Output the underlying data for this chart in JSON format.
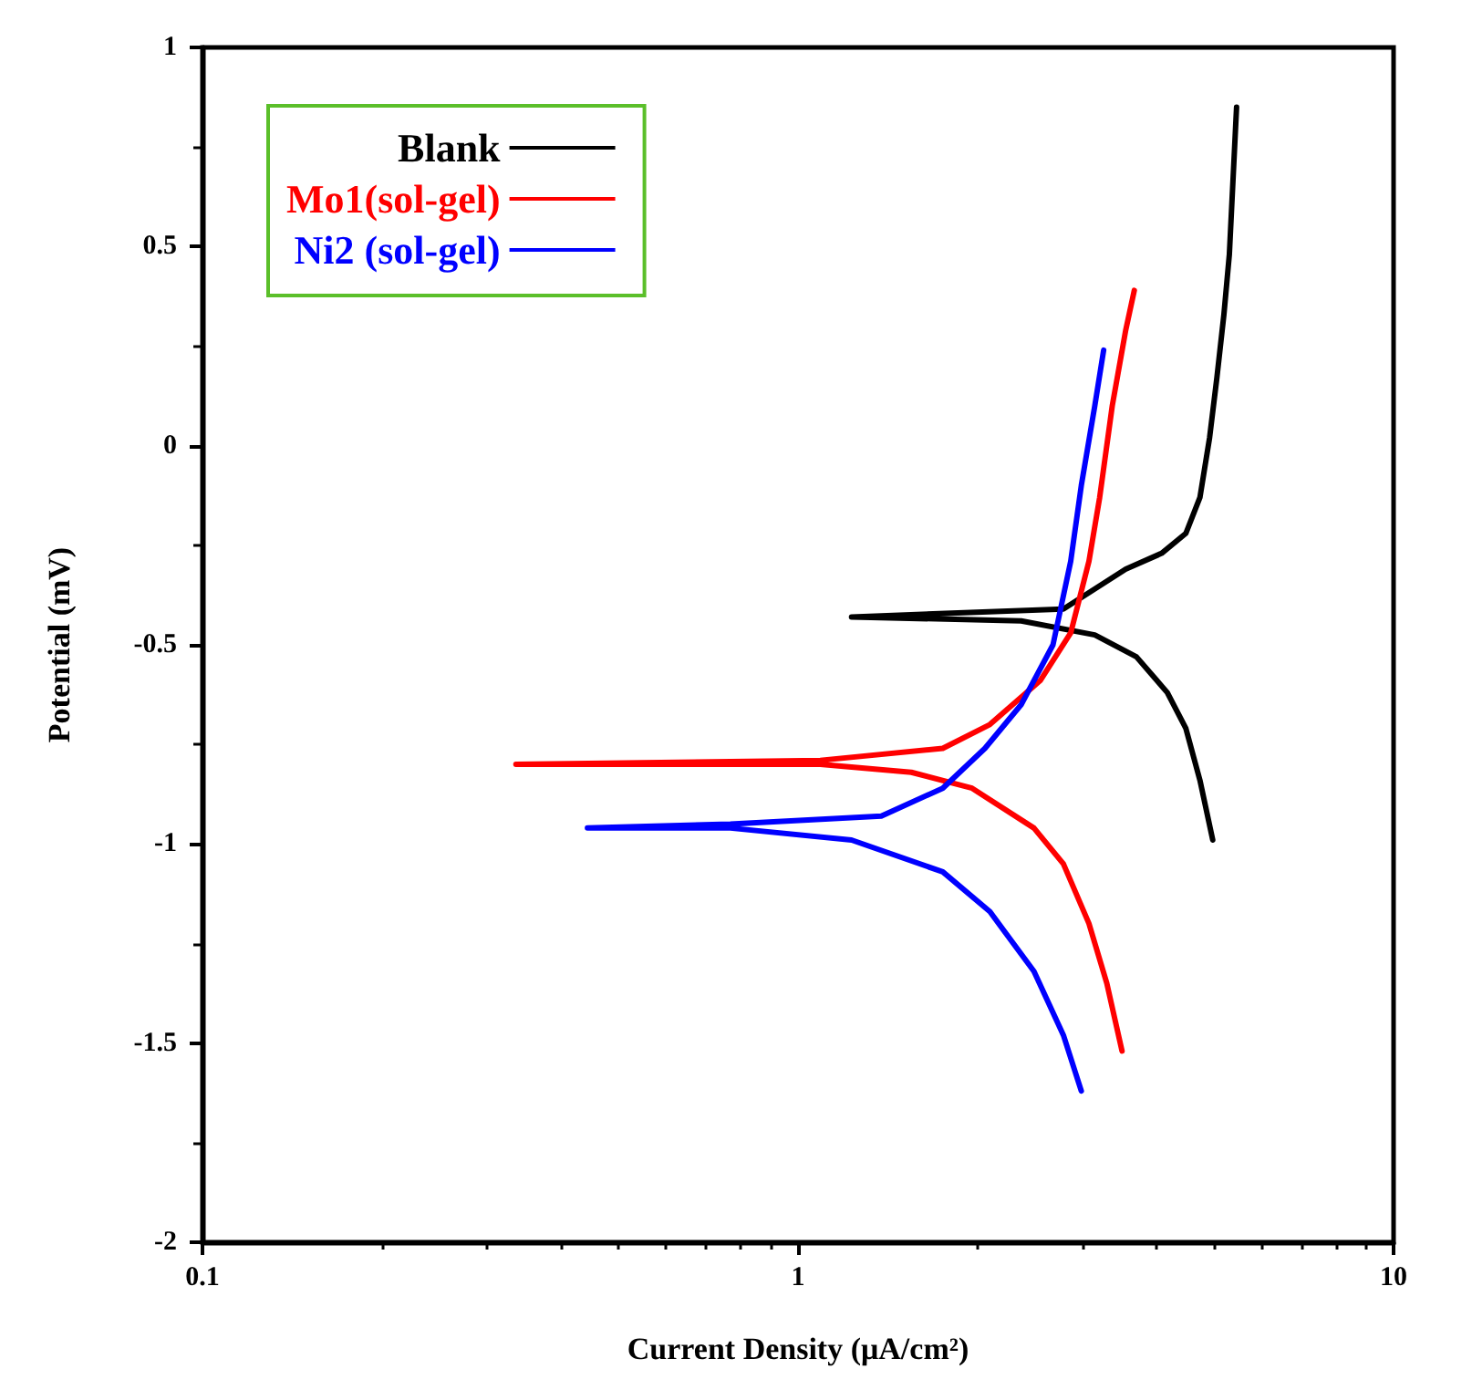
{
  "chart_data": {
    "type": "line",
    "xlabel": "Current Density (μA/cm²)",
    "ylabel": "Potential (mV)",
    "xlim": [
      0.1,
      10
    ],
    "xticks": [
      0.1,
      1,
      10
    ],
    "ylim": [
      -2,
      1
    ],
    "yticks": [
      -2,
      -1.5,
      -1,
      -0.5,
      0,
      0.5,
      1
    ],
    "log": "x",
    "grid": false,
    "legend": "top left",
    "marker": "none",
    "line_style": "solid",
    "series": [
      {
        "name": "Blank",
        "color": "#000000",
        "x": [
          4.97,
          4.73,
          4.48,
          4.17,
          3.7,
          3.15,
          2.37,
          1.23,
          2.79,
          3.55,
          4.08,
          4.48,
          4.73,
          4.91,
          5.05,
          5.19,
          5.3,
          5.45
        ],
        "values": [
          -0.99,
          -0.84,
          -0.71,
          -0.62,
          -0.53,
          -0.475,
          -0.44,
          -0.43,
          -0.41,
          -0.31,
          -0.27,
          -0.22,
          -0.13,
          0.02,
          0.17,
          0.33,
          0.48,
          0.85
        ]
      },
      {
        "name": "Mo1(sol-gel)",
        "color": "#ff0000",
        "x": [
          3.5,
          3.3,
          3.08,
          2.79,
          2.49,
          1.96,
          1.55,
          1.09,
          0.336,
          1.09,
          1.75,
          2.1,
          2.55,
          2.87,
          3.08,
          3.21,
          3.37,
          3.55,
          3.67
        ],
        "values": [
          -1.52,
          -1.35,
          -1.2,
          -1.05,
          -0.96,
          -0.86,
          -0.82,
          -0.8,
          -0.8,
          -0.79,
          -0.76,
          -0.7,
          -0.59,
          -0.47,
          -0.29,
          -0.13,
          0.1,
          0.29,
          0.39
        ]
      },
      {
        "name": "Ni2 (sol-gel)",
        "color": "#0000ff",
        "x": [
          2.99,
          2.79,
          2.49,
          2.1,
          1.75,
          1.23,
          0.77,
          0.443,
          0.77,
          1.38,
          1.75,
          2.06,
          2.37,
          2.68,
          2.87,
          2.99,
          3.15,
          3.26
        ],
        "values": [
          -1.62,
          -1.48,
          -1.32,
          -1.17,
          -1.07,
          -0.99,
          -0.96,
          -0.96,
          -0.95,
          -0.93,
          -0.86,
          -0.76,
          -0.65,
          -0.5,
          -0.29,
          -0.1,
          0.1,
          0.24
        ]
      }
    ]
  }
}
